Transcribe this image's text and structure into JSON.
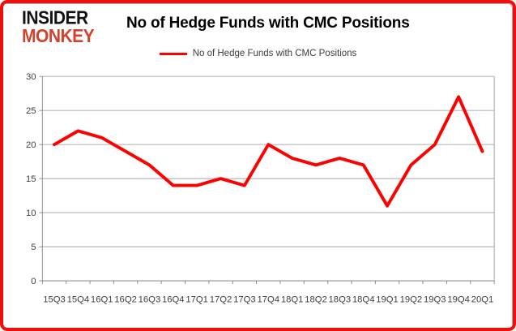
{
  "header": {
    "logo_line1": "INSIDER",
    "logo_line2": "MONKEY",
    "title": "No of Hedge Funds with CMC Positions"
  },
  "legend": {
    "label": "No of Hedge Funds with CMC Positions"
  },
  "colors": {
    "series_line": "#fe0000",
    "frame_border": "#ee100c",
    "gridline": "#a6a6a6",
    "axis_line": "#8c8c8c",
    "tick_text": "#3d3d3d",
    "logo_black": "#121212",
    "logo_red": "#d3422e"
  },
  "chart_data": {
    "type": "line",
    "title": "No of Hedge Funds with CMC Positions",
    "categories": [
      "15Q3",
      "15Q4",
      "16Q1",
      "16Q2",
      "16Q3",
      "16Q4",
      "17Q1",
      "17Q2",
      "17Q3",
      "17Q4",
      "18Q1",
      "18Q2",
      "18Q3",
      "18Q4",
      "19Q1",
      "19Q2",
      "19Q3",
      "19Q4",
      "20Q1"
    ],
    "series": [
      {
        "name": "No of Hedge Funds with CMC Positions",
        "color": "#fe0000",
        "values": [
          20,
          22,
          21,
          19,
          17,
          14,
          14,
          15,
          14,
          20,
          18,
          17,
          18,
          17,
          11,
          17,
          20,
          27,
          19
        ]
      }
    ],
    "xlabel": "",
    "ylabel": "",
    "ylim": [
      0,
      30
    ],
    "yticks": [
      0,
      5,
      10,
      15,
      20,
      25,
      30
    ],
    "grid": true,
    "legend_position": "top-center"
  }
}
